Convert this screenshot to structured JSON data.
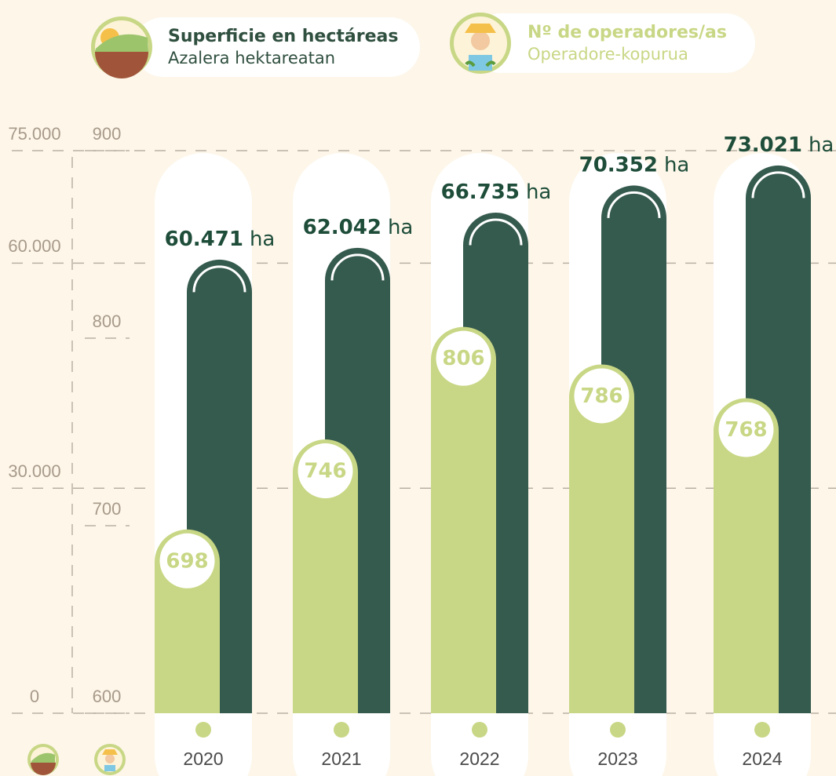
{
  "chart_data": {
    "type": "bar",
    "categories": [
      "2020",
      "2021",
      "2022",
      "2023",
      "2024"
    ],
    "series": [
      {
        "name": "Superficie en hectáreas",
        "name_eu": "Azalera hektareatan",
        "color": "#355a4e",
        "values": [
          60471,
          62042,
          66735,
          70352,
          73021
        ],
        "value_labels": [
          "60.471",
          "62.042",
          "66.735",
          "70.352",
          "73.021"
        ],
        "unit_label": "ha"
      },
      {
        "name": "Nº de operadores/as",
        "name_eu": "Operadore-kopurua",
        "color": "#c8d785",
        "axis": "y2",
        "values": [
          698,
          746,
          806,
          786,
          768
        ]
      }
    ],
    "ylim": [
      0,
      75000
    ],
    "yticks": [
      0,
      {
        "value": 30000,
        "label": "30.000"
      },
      {
        "value": 60000,
        "label": "60.000"
      },
      {
        "value": 75000,
        "label": "75.000"
      }
    ],
    "y2lim": [
      600,
      900
    ],
    "y2ticks": [
      600,
      700,
      800,
      900
    ],
    "grid": true
  }
}
